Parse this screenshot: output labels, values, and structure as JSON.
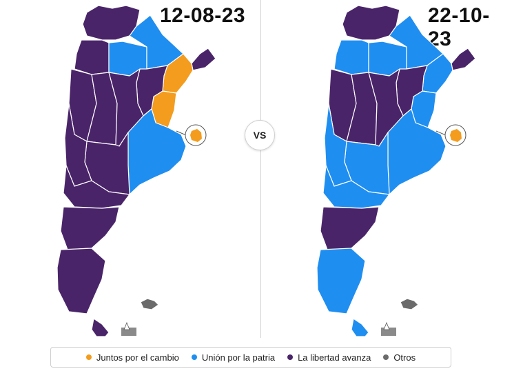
{
  "colors": {
    "juntos": "#f39c1e",
    "union": "#1f8ef1",
    "libertad": "#4a2469",
    "otros": "#6b6b6b"
  },
  "maps": [
    {
      "date": "12-08-23",
      "regions": {
        "noa_north": "libertad",
        "noa_west": "libertad",
        "noa_mid": "union",
        "noa_east": "union",
        "misiones": "libertad",
        "corrientes": "juntos",
        "entre_rios": "juntos",
        "cuyo_north": "libertad",
        "cuyo_mid": "libertad",
        "centro": "libertad",
        "santa_fe": "libertad",
        "buenos_aires": "union",
        "la_pampa": "libertad",
        "neuquen": "libertad",
        "rio_negro": "libertad",
        "chubut": "libertad",
        "santa_cruz": "libertad",
        "tdf": "libertad",
        "caba": "juntos",
        "malvinas": "otros"
      }
    },
    {
      "date": "22-10-23",
      "regions": {
        "noa_north": "libertad",
        "noa_west": "union",
        "noa_mid": "union",
        "noa_east": "union",
        "misiones": "libertad",
        "corrientes": "union",
        "entre_rios": "union",
        "cuyo_north": "libertad",
        "cuyo_mid": "libertad",
        "centro": "libertad",
        "santa_fe": "libertad",
        "buenos_aires": "union",
        "la_pampa": "union",
        "neuquen": "union",
        "rio_negro": "union",
        "chubut": "libertad",
        "santa_cruz": "union",
        "tdf": "union",
        "caba": "juntos",
        "malvinas": "otros"
      }
    }
  ],
  "vs_label": "VS",
  "legend": [
    {
      "label": "Juntos por el cambio",
      "color": "#f39c1e"
    },
    {
      "label": "Unión por la patria",
      "color": "#1f8ef1"
    },
    {
      "label": "La libertad avanza",
      "color": "#4a2469"
    },
    {
      "label": "Otros",
      "color": "#6b6b6b"
    }
  ]
}
